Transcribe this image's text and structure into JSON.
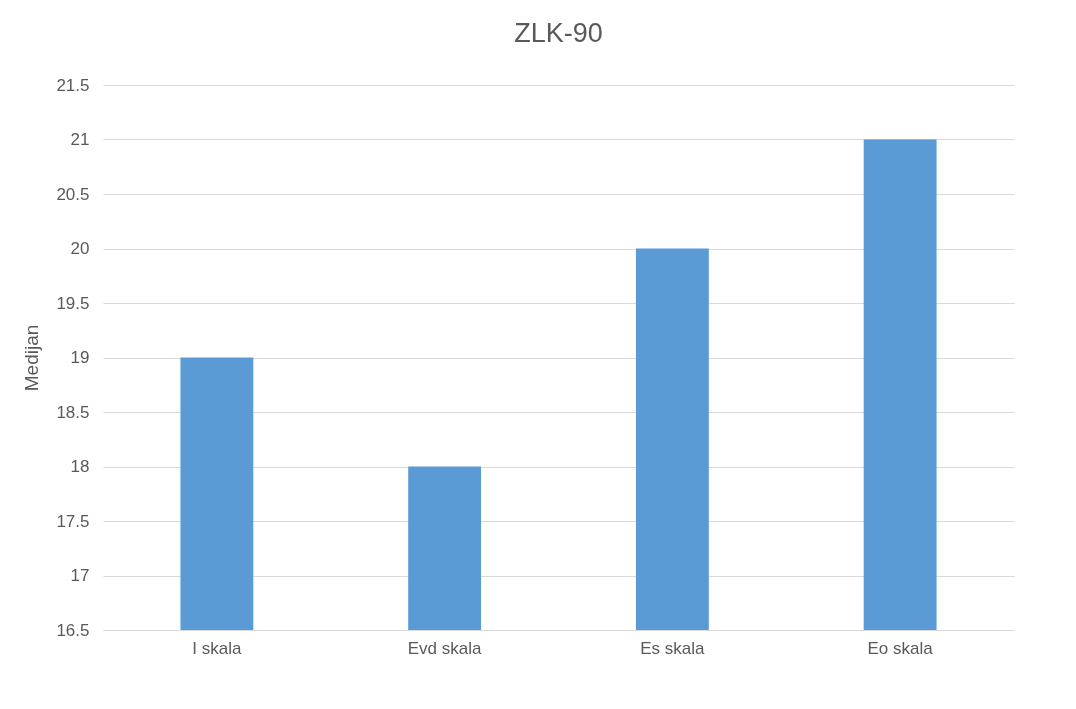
{
  "chart_data": {
    "type": "bar",
    "title": "ZLK-90",
    "ylabel": "Medijan",
    "categories": [
      "I skala",
      "Evd skala",
      "Es skala",
      "Eo skala"
    ],
    "values": [
      19,
      18,
      20,
      21
    ],
    "color": "#5b9bd5",
    "ylim": [
      16.5,
      21.5
    ],
    "yticks": [
      16.5,
      17,
      17.5,
      18,
      18.5,
      19,
      19.5,
      20,
      20.5,
      21,
      21.5
    ],
    "grid": "y"
  }
}
